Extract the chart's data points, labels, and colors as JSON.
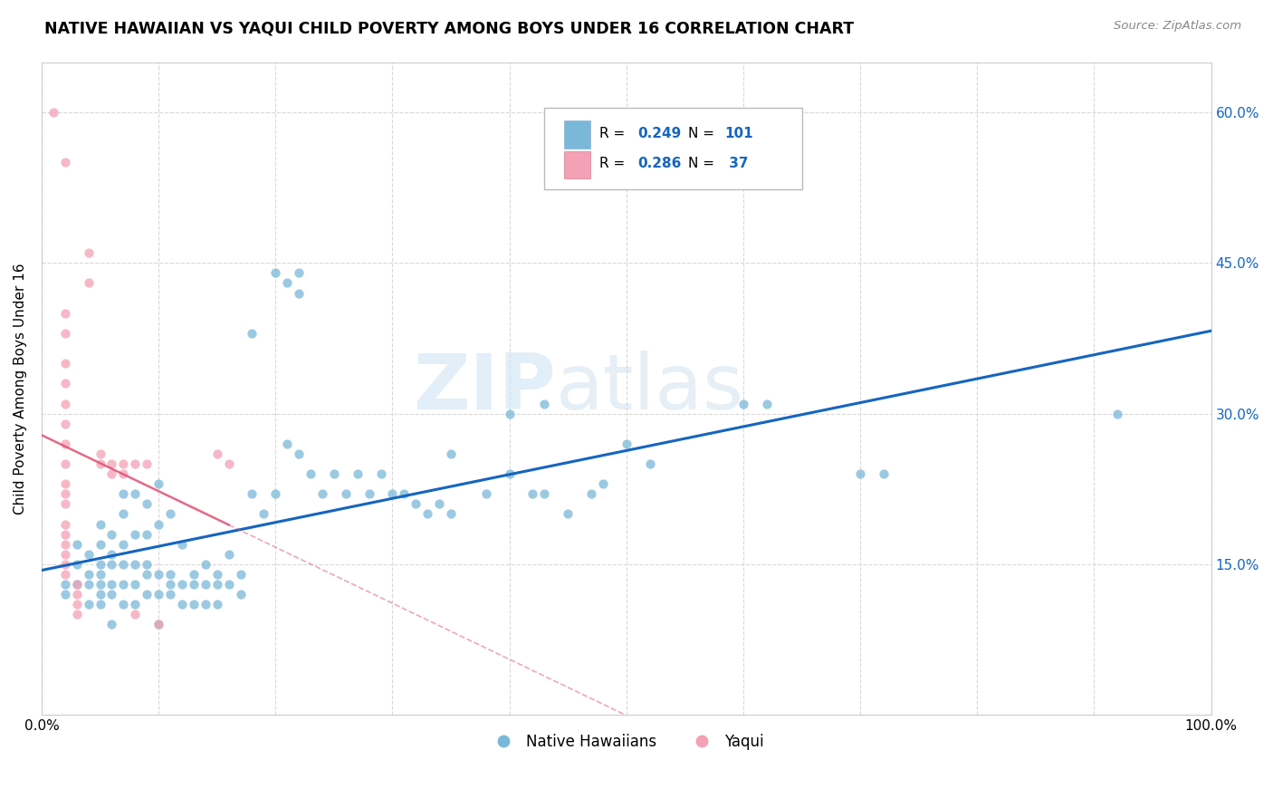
{
  "title": "NATIVE HAWAIIAN VS YAQUI CHILD POVERTY AMONG BOYS UNDER 16 CORRELATION CHART",
  "source": "Source: ZipAtlas.com",
  "ylabel": "Child Poverty Among Boys Under 16",
  "xlim": [
    0.0,
    1.0
  ],
  "ylim": [
    0.0,
    0.65
  ],
  "xticks": [
    0.0,
    0.1,
    0.2,
    0.3,
    0.4,
    0.5,
    0.6,
    0.7,
    0.8,
    0.9,
    1.0
  ],
  "xticklabels": [
    "0.0%",
    "",
    "",
    "",
    "",
    "",
    "",
    "",
    "",
    "",
    "100.0%"
  ],
  "yticks": [
    0.0,
    0.15,
    0.3,
    0.45,
    0.6
  ],
  "yticklabels_left": [
    "",
    "",
    "",
    "",
    ""
  ],
  "yticklabels_right": [
    "",
    "15.0%",
    "30.0%",
    "45.0%",
    "60.0%"
  ],
  "nh_color": "#7ab8d9",
  "yaqui_color": "#f4a0b5",
  "nh_line_color": "#1565c0",
  "yaqui_line_color": "#e05070",
  "background_color": "#ffffff",
  "grid_color": "#d8d8d8",
  "right_axis_color": "#1565c0",
  "nh_scatter": [
    [
      0.02,
      0.13
    ],
    [
      0.02,
      0.12
    ],
    [
      0.03,
      0.17
    ],
    [
      0.03,
      0.15
    ],
    [
      0.03,
      0.13
    ],
    [
      0.04,
      0.16
    ],
    [
      0.04,
      0.14
    ],
    [
      0.04,
      0.13
    ],
    [
      0.04,
      0.11
    ],
    [
      0.05,
      0.19
    ],
    [
      0.05,
      0.17
    ],
    [
      0.05,
      0.15
    ],
    [
      0.05,
      0.14
    ],
    [
      0.05,
      0.13
    ],
    [
      0.05,
      0.12
    ],
    [
      0.05,
      0.11
    ],
    [
      0.06,
      0.18
    ],
    [
      0.06,
      0.16
    ],
    [
      0.06,
      0.15
    ],
    [
      0.06,
      0.13
    ],
    [
      0.06,
      0.12
    ],
    [
      0.06,
      0.09
    ],
    [
      0.07,
      0.22
    ],
    [
      0.07,
      0.2
    ],
    [
      0.07,
      0.17
    ],
    [
      0.07,
      0.15
    ],
    [
      0.07,
      0.13
    ],
    [
      0.07,
      0.11
    ],
    [
      0.08,
      0.22
    ],
    [
      0.08,
      0.18
    ],
    [
      0.08,
      0.15
    ],
    [
      0.08,
      0.13
    ],
    [
      0.08,
      0.11
    ],
    [
      0.09,
      0.21
    ],
    [
      0.09,
      0.18
    ],
    [
      0.09,
      0.15
    ],
    [
      0.09,
      0.14
    ],
    [
      0.09,
      0.12
    ],
    [
      0.1,
      0.23
    ],
    [
      0.1,
      0.19
    ],
    [
      0.1,
      0.14
    ],
    [
      0.1,
      0.12
    ],
    [
      0.1,
      0.09
    ],
    [
      0.11,
      0.2
    ],
    [
      0.11,
      0.14
    ],
    [
      0.11,
      0.13
    ],
    [
      0.11,
      0.12
    ],
    [
      0.12,
      0.17
    ],
    [
      0.12,
      0.13
    ],
    [
      0.12,
      0.11
    ],
    [
      0.13,
      0.14
    ],
    [
      0.13,
      0.13
    ],
    [
      0.13,
      0.11
    ],
    [
      0.14,
      0.15
    ],
    [
      0.14,
      0.13
    ],
    [
      0.14,
      0.11
    ],
    [
      0.15,
      0.14
    ],
    [
      0.15,
      0.13
    ],
    [
      0.15,
      0.11
    ],
    [
      0.16,
      0.16
    ],
    [
      0.16,
      0.13
    ],
    [
      0.17,
      0.14
    ],
    [
      0.17,
      0.12
    ],
    [
      0.18,
      0.22
    ],
    [
      0.19,
      0.2
    ],
    [
      0.2,
      0.22
    ],
    [
      0.21,
      0.27
    ],
    [
      0.22,
      0.26
    ],
    [
      0.23,
      0.24
    ],
    [
      0.24,
      0.22
    ],
    [
      0.25,
      0.24
    ],
    [
      0.26,
      0.22
    ],
    [
      0.27,
      0.24
    ],
    [
      0.28,
      0.22
    ],
    [
      0.29,
      0.24
    ],
    [
      0.3,
      0.22
    ],
    [
      0.31,
      0.22
    ],
    [
      0.32,
      0.21
    ],
    [
      0.33,
      0.2
    ],
    [
      0.34,
      0.21
    ],
    [
      0.35,
      0.2
    ],
    [
      0.38,
      0.22
    ],
    [
      0.4,
      0.24
    ],
    [
      0.42,
      0.22
    ],
    [
      0.43,
      0.22
    ],
    [
      0.45,
      0.2
    ],
    [
      0.47,
      0.22
    ],
    [
      0.48,
      0.23
    ],
    [
      0.2,
      0.44
    ],
    [
      0.21,
      0.43
    ],
    [
      0.22,
      0.44
    ],
    [
      0.22,
      0.42
    ],
    [
      0.18,
      0.38
    ],
    [
      0.35,
      0.26
    ],
    [
      0.4,
      0.3
    ],
    [
      0.43,
      0.31
    ],
    [
      0.5,
      0.27
    ],
    [
      0.52,
      0.25
    ],
    [
      0.6,
      0.31
    ],
    [
      0.62,
      0.31
    ],
    [
      0.7,
      0.24
    ],
    [
      0.72,
      0.24
    ],
    [
      0.92,
      0.3
    ]
  ],
  "yaqui_scatter": [
    [
      0.01,
      0.6
    ],
    [
      0.02,
      0.55
    ],
    [
      0.02,
      0.4
    ],
    [
      0.02,
      0.38
    ],
    [
      0.02,
      0.35
    ],
    [
      0.02,
      0.33
    ],
    [
      0.02,
      0.31
    ],
    [
      0.02,
      0.29
    ],
    [
      0.02,
      0.27
    ],
    [
      0.02,
      0.25
    ],
    [
      0.02,
      0.23
    ],
    [
      0.02,
      0.22
    ],
    [
      0.02,
      0.21
    ],
    [
      0.02,
      0.19
    ],
    [
      0.02,
      0.18
    ],
    [
      0.02,
      0.17
    ],
    [
      0.02,
      0.16
    ],
    [
      0.02,
      0.15
    ],
    [
      0.02,
      0.14
    ],
    [
      0.03,
      0.13
    ],
    [
      0.03,
      0.12
    ],
    [
      0.03,
      0.11
    ],
    [
      0.03,
      0.1
    ],
    [
      0.04,
      0.46
    ],
    [
      0.04,
      0.43
    ],
    [
      0.05,
      0.26
    ],
    [
      0.05,
      0.25
    ],
    [
      0.06,
      0.25
    ],
    [
      0.06,
      0.24
    ],
    [
      0.07,
      0.25
    ],
    [
      0.07,
      0.24
    ],
    [
      0.08,
      0.25
    ],
    [
      0.08,
      0.1
    ],
    [
      0.09,
      0.25
    ],
    [
      0.1,
      0.09
    ],
    [
      0.15,
      0.26
    ],
    [
      0.16,
      0.25
    ]
  ]
}
